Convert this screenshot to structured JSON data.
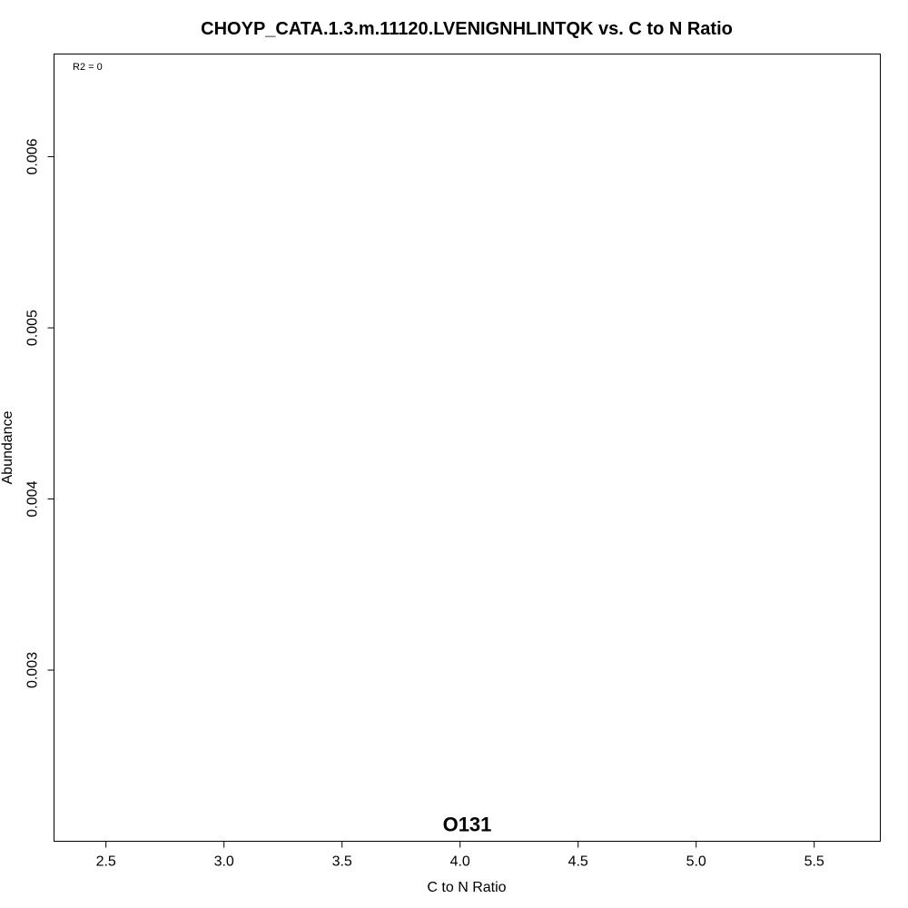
{
  "chart_data": {
    "type": "scatter",
    "title": "CHOYP_CATA.1.3.m.11120.LVENIGNHLINTQK vs. C to N Ratio",
    "xlabel": "C to N Ratio",
    "ylabel": "Abundance",
    "xlim": [
      2.28,
      5.78
    ],
    "ylim": [
      0.002,
      0.0066
    ],
    "x_ticks": [
      2.5,
      3.0,
      3.5,
      4.0,
      4.5,
      5.0,
      5.5
    ],
    "x_tick_labels": [
      "2.5",
      "3.0",
      "3.5",
      "4.0",
      "4.5",
      "5.0",
      "5.5"
    ],
    "y_ticks": [
      0.003,
      0.004,
      0.005,
      0.006
    ],
    "y_tick_labels": [
      "0.003",
      "0.004",
      "0.005",
      "0.006"
    ],
    "annotation": "R2 = 0",
    "points": [
      {
        "label": "O131",
        "x": 4.03,
        "y": 0.0021
      }
    ],
    "grid": false,
    "legend": "none"
  }
}
